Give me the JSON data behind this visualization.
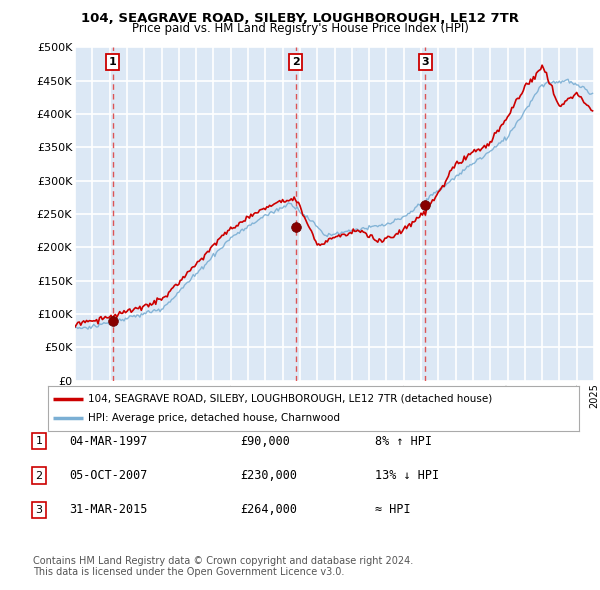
{
  "title1": "104, SEAGRAVE ROAD, SILEBY, LOUGHBOROUGH, LE12 7TR",
  "title2": "Price paid vs. HM Land Registry's House Price Index (HPI)",
  "legend_line1": "104, SEAGRAVE ROAD, SILEBY, LOUGHBOROUGH, LE12 7TR (detached house)",
  "legend_line2": "HPI: Average price, detached house, Charnwood",
  "footnote1": "Contains HM Land Registry data © Crown copyright and database right 2024.",
  "footnote2": "This data is licensed under the Open Government Licence v3.0.",
  "transactions": [
    {
      "num": 1,
      "date": "04-MAR-1997",
      "price": 90000,
      "label": "8% ↑ HPI",
      "x": 1997.17
    },
    {
      "num": 2,
      "date": "05-OCT-2007",
      "price": 230000,
      "label": "13% ↓ HPI",
      "x": 2007.75
    },
    {
      "num": 3,
      "date": "31-MAR-2015",
      "price": 264000,
      "label": "≈ HPI",
      "x": 2015.25
    }
  ],
  "ylim": [
    0,
    500000
  ],
  "xlim": [
    1995,
    2025
  ],
  "yticks": [
    0,
    50000,
    100000,
    150000,
    200000,
    250000,
    300000,
    350000,
    400000,
    450000,
    500000
  ],
  "ytick_labels": [
    "£0",
    "£50K",
    "£100K",
    "£150K",
    "£200K",
    "£250K",
    "£300K",
    "£350K",
    "£400K",
    "£450K",
    "£500K"
  ],
  "background_color": "#dce8f5",
  "grid_color": "#ffffff",
  "red_line_color": "#cc0000",
  "blue_line_color": "#7bafd4",
  "dashed_line_color": "#dd4444",
  "marker_color": "#990000",
  "box_border_color": "#cc0000"
}
